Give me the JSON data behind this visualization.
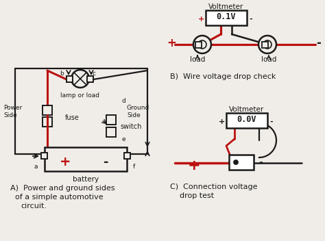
{
  "bg_color": "#f0ede8",
  "line_color": "#1a1a1a",
  "red_color": "#bb1111",
  "title_A": "A)  Power and ground sides\n      of a simple automotive\n      circuit.",
  "title_B": "B)  Wire voltage drop check",
  "title_C": "C)  Connection voltage\n      drop test",
  "voltmeter_B_text": "0.1V",
  "voltmeter_C_text": "0.0V",
  "voltmeter_label": "Voltmeter"
}
